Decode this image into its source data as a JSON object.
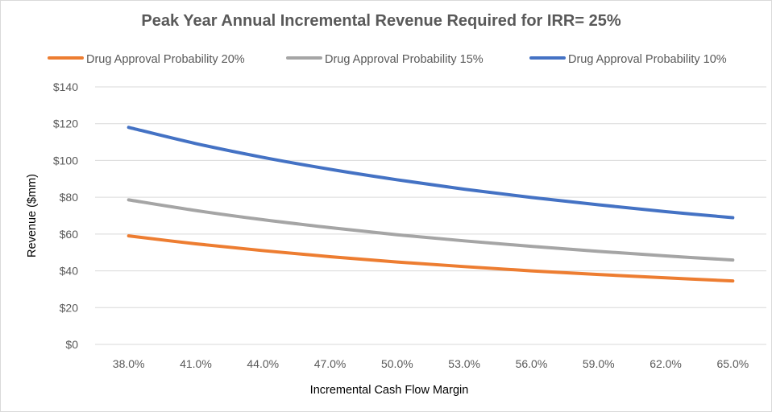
{
  "chart_data": {
    "type": "line",
    "title": "Peak Year Annual Incremental Revenue Required for IRR= 25%",
    "xlabel": "Incremental Cash Flow Margin",
    "ylabel": "Revenue ($mm)",
    "categories": [
      "38.0%",
      "41.0%",
      "44.0%",
      "47.0%",
      "50.0%",
      "53.0%",
      "56.0%",
      "59.0%",
      "62.0%",
      "65.0%"
    ],
    "x": [
      38,
      41,
      44,
      47,
      50,
      53,
      56,
      59,
      62,
      65
    ],
    "ylim": [
      0,
      140
    ],
    "yticks": [
      0,
      20,
      40,
      60,
      80,
      100,
      120,
      140
    ],
    "ytick_labels": [
      "$0",
      "$20",
      "$40",
      "$60",
      "$80",
      "$100",
      "$120",
      "$140"
    ],
    "grid": true,
    "legend_position": "top",
    "series": [
      {
        "name": "Drug Approval Probability 20%",
        "color": "#ed7d31",
        "values": [
          59,
          54.7,
          51,
          47.7,
          44.8,
          42.3,
          40,
          38,
          36.2,
          34.5
        ]
      },
      {
        "name": "Drug Approval Probability 15%",
        "color": "#a5a5a5",
        "values": [
          78.6,
          72.8,
          67.8,
          63.5,
          59.6,
          56.3,
          53.3,
          50.6,
          48.1,
          45.9
        ]
      },
      {
        "name": "Drug Approval Probability 10%",
        "color": "#4472c4",
        "values": [
          118,
          109.2,
          101.7,
          95.2,
          89.5,
          84.4,
          79.9,
          75.9,
          72.2,
          68.9
        ]
      }
    ]
  }
}
